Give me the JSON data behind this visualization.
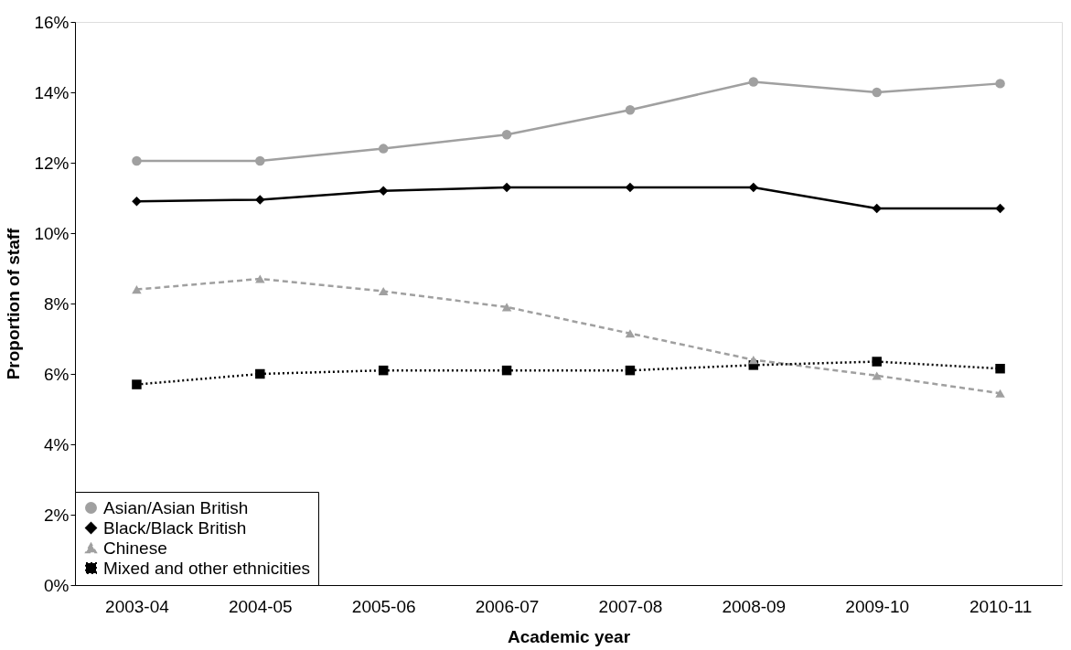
{
  "chart_data": {
    "type": "line",
    "xlabel": "Academic year",
    "ylabel": "Proportion of staff",
    "categories": [
      "2003-04",
      "2004-05",
      "2005-06",
      "2006-07",
      "2007-08",
      "2008-09",
      "2009-10",
      "2010-11"
    ],
    "ylim": [
      0,
      16
    ],
    "yticks": [
      {
        "value": 0,
        "label": "0%"
      },
      {
        "value": 2,
        "label": "2%"
      },
      {
        "value": 4,
        "label": "4%"
      },
      {
        "value": 6,
        "label": "6%"
      },
      {
        "value": 8,
        "label": "8%"
      },
      {
        "value": 10,
        "label": "10%"
      },
      {
        "value": 12,
        "label": "12%"
      },
      {
        "value": 14,
        "label": "14%"
      },
      {
        "value": 16,
        "label": "16%"
      }
    ],
    "grid": false,
    "legend": "bottom left",
    "series": [
      {
        "name": "Asian/Asian British",
        "color": "#a0a0a0",
        "marker": "circle",
        "line_style": "solid",
        "values": [
          12.05,
          12.05,
          12.4,
          12.8,
          13.5,
          14.3,
          14.0,
          14.25
        ]
      },
      {
        "name": "Black/Black British",
        "color": "#000000",
        "marker": "diamond",
        "line_style": "solid",
        "values": [
          10.9,
          10.95,
          11.2,
          11.3,
          11.3,
          11.3,
          10.7,
          10.7
        ]
      },
      {
        "name": "Chinese",
        "color": "#a0a0a0",
        "marker": "triangle",
        "line_style": "dashed",
        "values": [
          8.4,
          8.7,
          8.35,
          7.9,
          7.15,
          6.4,
          5.95,
          5.45
        ]
      },
      {
        "name": "Mixed and other ethnicities",
        "color": "#000000",
        "marker": "square",
        "line_style": "dotted",
        "values": [
          5.7,
          6.0,
          6.1,
          6.1,
          6.1,
          6.25,
          6.35,
          6.15
        ]
      }
    ]
  }
}
